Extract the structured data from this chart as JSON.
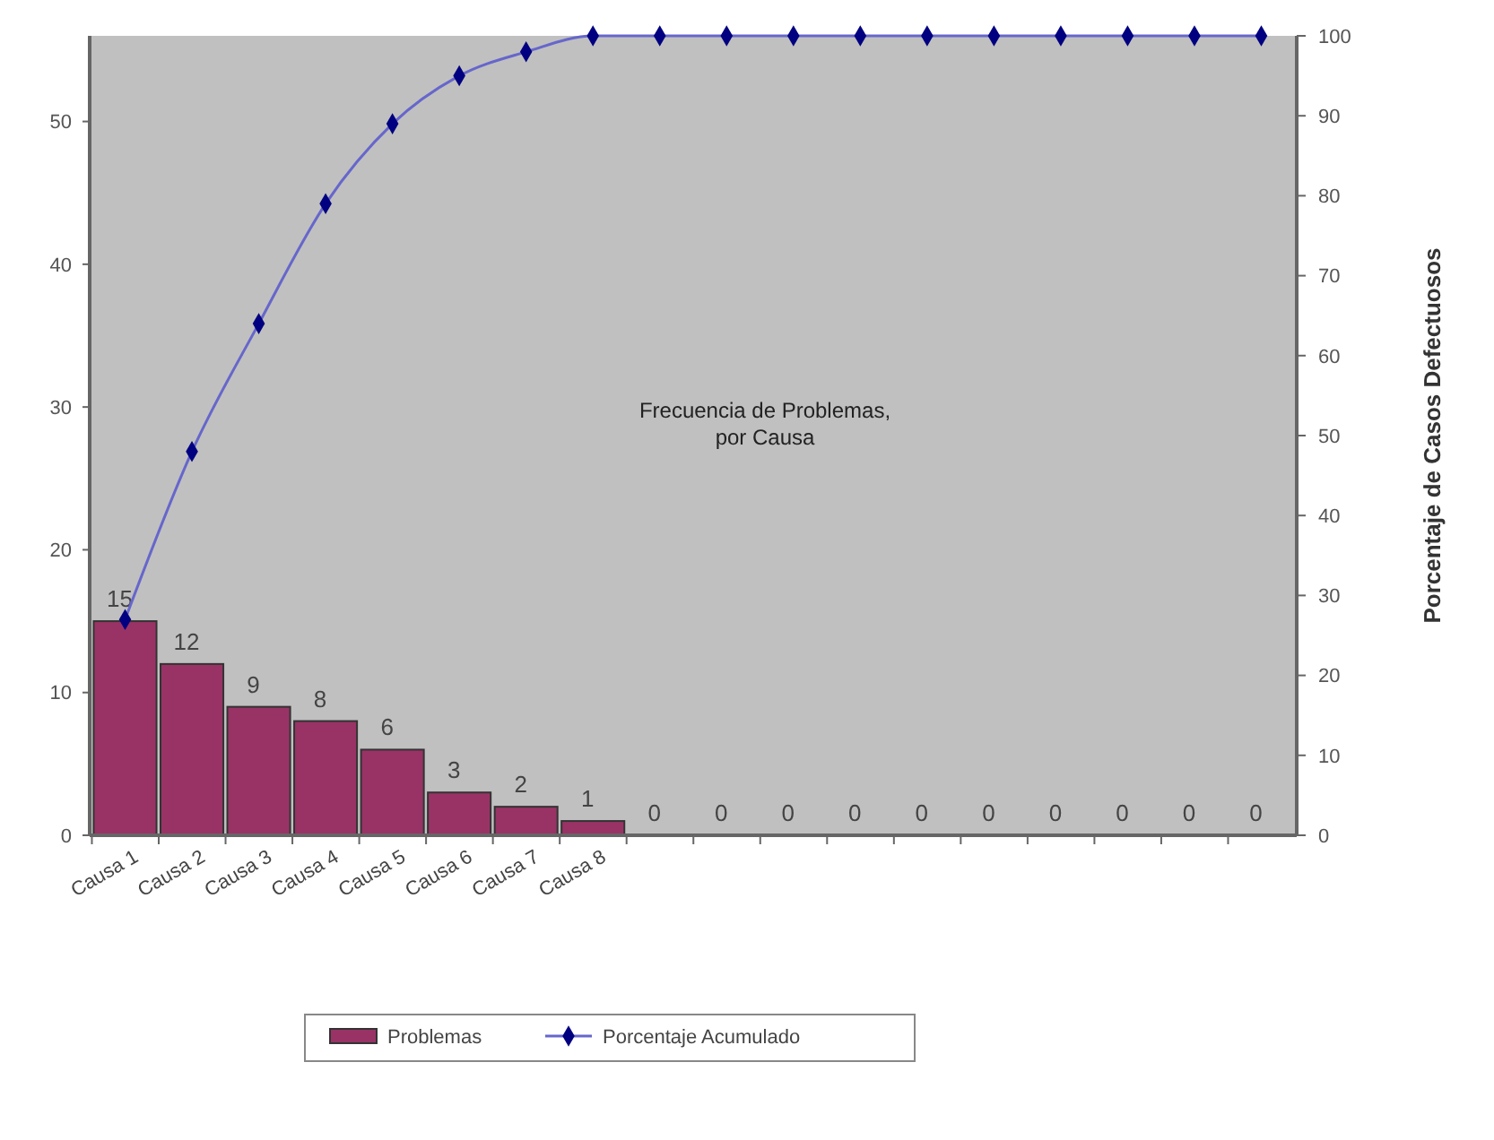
{
  "chart_data": {
    "type": "bar",
    "title": "Frecuencia de Problemas, por Causa",
    "y2label": "Porcentaje de Casos Defectuosos",
    "categories": [
      "Causa 1",
      "Causa 2",
      "Causa 3",
      "Causa 4",
      "Causa 5",
      "Causa 6",
      "Causa 7",
      "Causa 8",
      null,
      null,
      null,
      null,
      null,
      null,
      null,
      null,
      null,
      null
    ],
    "series": [
      {
        "name": "Problemas",
        "color": "#993366",
        "values": [
          15,
          12,
          9,
          8,
          6,
          3,
          2,
          1,
          0,
          0,
          0,
          0,
          0,
          0,
          0,
          0,
          0,
          0
        ],
        "value_labels": [
          "15",
          "12",
          "9",
          "8",
          "6",
          "3",
          "2",
          "1",
          "0",
          "0",
          "0",
          "0",
          "0",
          "0",
          "0",
          "0",
          "0",
          "0"
        ]
      },
      {
        "name": "Porcentaje Acumulado",
        "type": "line",
        "axis": "y2",
        "color": "#000080",
        "values": [
          27,
          48,
          64,
          79,
          89,
          95,
          98,
          100,
          100,
          100,
          100,
          100,
          100,
          100,
          100,
          100,
          100,
          100
        ]
      }
    ],
    "ylim": [
      0,
      56
    ],
    "yticks": [
      0,
      10,
      20,
      30,
      40,
      50
    ],
    "y2lim": [
      0,
      100
    ],
    "y2ticks": [
      0,
      10,
      20,
      30,
      40,
      50,
      60,
      70,
      80,
      90,
      100
    ],
    "marker": "diamond",
    "grid": false,
    "legend": "bottom"
  }
}
